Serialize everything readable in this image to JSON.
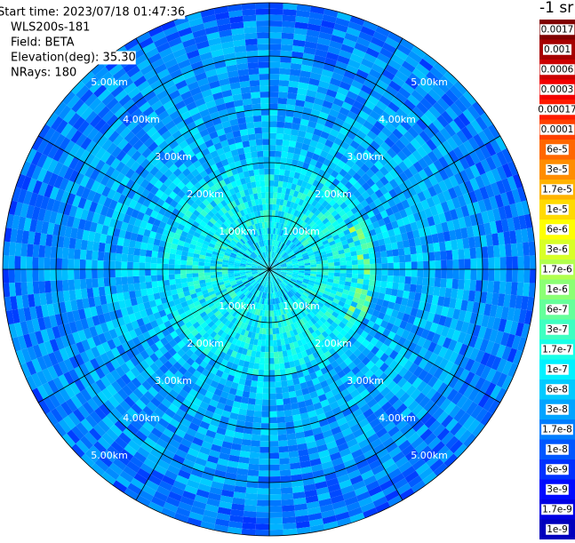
{
  "chart_data": {
    "type": "polar-heatmap",
    "header": [
      "Start time: 2023/07/18 01:47:36",
      "WLS200s-181",
      "Field: BETA",
      "Elevation(deg): 35.30",
      "NRays: 180"
    ],
    "colorbar_title": "-1 sr",
    "colormap": "jet",
    "rlim": [
      0,
      5
    ],
    "rticks": [
      {
        "value": 1,
        "label": "1.00km"
      },
      {
        "value": 2,
        "label": "2.00km"
      },
      {
        "value": 3,
        "label": "3.00km"
      },
      {
        "value": 4,
        "label": "4.00km"
      },
      {
        "value": 5,
        "label": "5.00km"
      }
    ],
    "spoke_step_deg": 30,
    "colorbar_ticks": [
      {
        "value": 0.0017,
        "label": "0.0017"
      },
      {
        "value": 0.001,
        "label": "0.001"
      },
      {
        "value": 0.0006,
        "label": "0.0006"
      },
      {
        "value": 0.0003,
        "label": "0.0003"
      },
      {
        "value": 0.00017,
        "label": "0.00017"
      },
      {
        "value": 0.0001,
        "label": "0.0001"
      },
      {
        "value": 6e-05,
        "label": "6e-5"
      },
      {
        "value": 3e-05,
        "label": "3e-5"
      },
      {
        "value": 1.7e-05,
        "label": "1.7e-5"
      },
      {
        "value": 1e-05,
        "label": "1e-5"
      },
      {
        "value": 6e-06,
        "label": "6e-6"
      },
      {
        "value": 3e-06,
        "label": "3e-6"
      },
      {
        "value": 1.7e-06,
        "label": "1.7e-6"
      },
      {
        "value": 1e-06,
        "label": "1e-6"
      },
      {
        "value": 6e-07,
        "label": "6e-7"
      },
      {
        "value": 3e-07,
        "label": "3e-7"
      },
      {
        "value": 1.7e-07,
        "label": "1.7e-7"
      },
      {
        "value": 1e-07,
        "label": "1e-7"
      },
      {
        "value": 6e-08,
        "label": "6e-8"
      },
      {
        "value": 3e-08,
        "label": "3e-8"
      },
      {
        "value": 1.7e-08,
        "label": "1.7e-8"
      },
      {
        "value": 1e-08,
        "label": "1e-8"
      },
      {
        "value": 6e-09,
        "label": "6e-9"
      },
      {
        "value": 3e-09,
        "label": "3e-9"
      },
      {
        "value": 1.7e-09,
        "label": "1.7e-9"
      },
      {
        "value": 1e-09,
        "label": "1e-9"
      }
    ]
  }
}
